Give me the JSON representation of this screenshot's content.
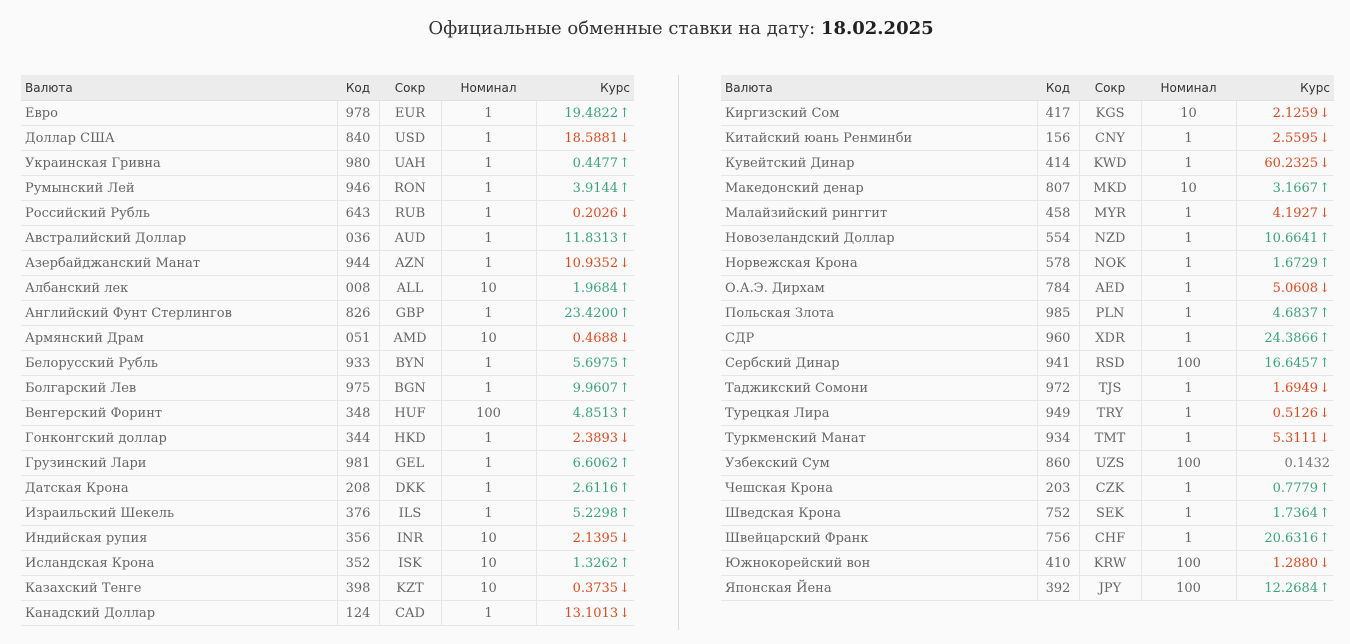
{
  "page": {
    "title_prefix": "Официальные обменные ставки на дату:",
    "date": "18.02.2025"
  },
  "headers": {
    "name": "Валюта",
    "code": "Код",
    "abbr": "Сокр",
    "nominal": "Номинал",
    "rate": "Курс"
  },
  "colors": {
    "up": "#3aa57a",
    "down": "#e04a1f",
    "flat": "#777777"
  },
  "left_table": [
    {
      "name": "Евро",
      "code": "978",
      "abbr": "EUR",
      "nominal": "1",
      "rate": "19.4822",
      "trend": "up"
    },
    {
      "name": "Доллар США",
      "code": "840",
      "abbr": "USD",
      "nominal": "1",
      "rate": "18.5881",
      "trend": "down"
    },
    {
      "name": "Украинская Гривна",
      "code": "980",
      "abbr": "UAH",
      "nominal": "1",
      "rate": "0.4477",
      "trend": "up"
    },
    {
      "name": "Румынский Лей",
      "code": "946",
      "abbr": "RON",
      "nominal": "1",
      "rate": "3.9144",
      "trend": "up"
    },
    {
      "name": "Российский Рубль",
      "code": "643",
      "abbr": "RUB",
      "nominal": "1",
      "rate": "0.2026",
      "trend": "down"
    },
    {
      "name": "Австралийский Доллар",
      "code": "036",
      "abbr": "AUD",
      "nominal": "1",
      "rate": "11.8313",
      "trend": "up"
    },
    {
      "name": "Азербайджанский Манат",
      "code": "944",
      "abbr": "AZN",
      "nominal": "1",
      "rate": "10.9352",
      "trend": "down"
    },
    {
      "name": "Албанский лек",
      "code": "008",
      "abbr": "ALL",
      "nominal": "10",
      "rate": "1.9684",
      "trend": "up"
    },
    {
      "name": "Английский Фунт Стерлингов",
      "code": "826",
      "abbr": "GBP",
      "nominal": "1",
      "rate": "23.4200",
      "trend": "up"
    },
    {
      "name": "Армянский Драм",
      "code": "051",
      "abbr": "AMD",
      "nominal": "10",
      "rate": "0.4688",
      "trend": "down"
    },
    {
      "name": "Белорусский Рубль",
      "code": "933",
      "abbr": "BYN",
      "nominal": "1",
      "rate": "5.6975",
      "trend": "up"
    },
    {
      "name": "Болгарский Лев",
      "code": "975",
      "abbr": "BGN",
      "nominal": "1",
      "rate": "9.9607",
      "trend": "up"
    },
    {
      "name": "Венгерский Форинт",
      "code": "348",
      "abbr": "HUF",
      "nominal": "100",
      "rate": "4.8513",
      "trend": "up"
    },
    {
      "name": "Гонконгский доллар",
      "code": "344",
      "abbr": "HKD",
      "nominal": "1",
      "rate": "2.3893",
      "trend": "down"
    },
    {
      "name": "Грузинский Лари",
      "code": "981",
      "abbr": "GEL",
      "nominal": "1",
      "rate": "6.6062",
      "trend": "up"
    },
    {
      "name": "Датская Крона",
      "code": "208",
      "abbr": "DKK",
      "nominal": "1",
      "rate": "2.6116",
      "trend": "up"
    },
    {
      "name": "Израильский Шекель",
      "code": "376",
      "abbr": "ILS",
      "nominal": "1",
      "rate": "5.2298",
      "trend": "up"
    },
    {
      "name": "Индийская рупия",
      "code": "356",
      "abbr": "INR",
      "nominal": "10",
      "rate": "2.1395",
      "trend": "down"
    },
    {
      "name": "Исландская Крона",
      "code": "352",
      "abbr": "ISK",
      "nominal": "10",
      "rate": "1.3262",
      "trend": "up"
    },
    {
      "name": "Казахский Тенге",
      "code": "398",
      "abbr": "KZT",
      "nominal": "10",
      "rate": "0.3735",
      "trend": "down"
    },
    {
      "name": "Канадский Доллар",
      "code": "124",
      "abbr": "CAD",
      "nominal": "1",
      "rate": "13.1013",
      "trend": "down"
    }
  ],
  "right_table": [
    {
      "name": "Киргизский Сом",
      "code": "417",
      "abbr": "KGS",
      "nominal": "10",
      "rate": "2.1259",
      "trend": "down"
    },
    {
      "name": "Китайский юань Ренминби",
      "code": "156",
      "abbr": "CNY",
      "nominal": "1",
      "rate": "2.5595",
      "trend": "down"
    },
    {
      "name": "Кувейтский Динар",
      "code": "414",
      "abbr": "KWD",
      "nominal": "1",
      "rate": "60.2325",
      "trend": "down"
    },
    {
      "name": "Македонский денар",
      "code": "807",
      "abbr": "MKD",
      "nominal": "10",
      "rate": "3.1667",
      "trend": "up"
    },
    {
      "name": "Малайзийский ринггит",
      "code": "458",
      "abbr": "MYR",
      "nominal": "1",
      "rate": "4.1927",
      "trend": "down"
    },
    {
      "name": "Новозеландский Доллар",
      "code": "554",
      "abbr": "NZD",
      "nominal": "1",
      "rate": "10.6641",
      "trend": "up"
    },
    {
      "name": "Норвежская Крона",
      "code": "578",
      "abbr": "NOK",
      "nominal": "1",
      "rate": "1.6729",
      "trend": "up"
    },
    {
      "name": "О.А.Э. Дирхам",
      "code": "784",
      "abbr": "AED",
      "nominal": "1",
      "rate": "5.0608",
      "trend": "down"
    },
    {
      "name": "Польская Злота",
      "code": "985",
      "abbr": "PLN",
      "nominal": "1",
      "rate": "4.6837",
      "trend": "up"
    },
    {
      "name": "СДР",
      "code": "960",
      "abbr": "XDR",
      "nominal": "1",
      "rate": "24.3866",
      "trend": "up"
    },
    {
      "name": "Сербский Динар",
      "code": "941",
      "abbr": "RSD",
      "nominal": "100",
      "rate": "16.6457",
      "trend": "up"
    },
    {
      "name": "Таджикский Сомони",
      "code": "972",
      "abbr": "TJS",
      "nominal": "1",
      "rate": "1.6949",
      "trend": "down"
    },
    {
      "name": "Турецкая Лира",
      "code": "949",
      "abbr": "TRY",
      "nominal": "1",
      "rate": "0.5126",
      "trend": "down"
    },
    {
      "name": "Туркменский Манат",
      "code": "934",
      "abbr": "TMT",
      "nominal": "1",
      "rate": "5.3111",
      "trend": "down"
    },
    {
      "name": "Узбекский Сум",
      "code": "860",
      "abbr": "UZS",
      "nominal": "100",
      "rate": "0.1432",
      "trend": "flat"
    },
    {
      "name": "Чешская Крона",
      "code": "203",
      "abbr": "CZK",
      "nominal": "1",
      "rate": "0.7779",
      "trend": "up"
    },
    {
      "name": "Шведская Крона",
      "code": "752",
      "abbr": "SEK",
      "nominal": "1",
      "rate": "1.7364",
      "trend": "up"
    },
    {
      "name": "Швейцарский Франк",
      "code": "756",
      "abbr": "CHF",
      "nominal": "1",
      "rate": "20.6316",
      "trend": "up"
    },
    {
      "name": "Южнокорейский вон",
      "code": "410",
      "abbr": "KRW",
      "nominal": "100",
      "rate": "1.2880",
      "trend": "down"
    },
    {
      "name": "Японская Йена",
      "code": "392",
      "abbr": "JPY",
      "nominal": "100",
      "rate": "12.2684",
      "trend": "up"
    }
  ]
}
